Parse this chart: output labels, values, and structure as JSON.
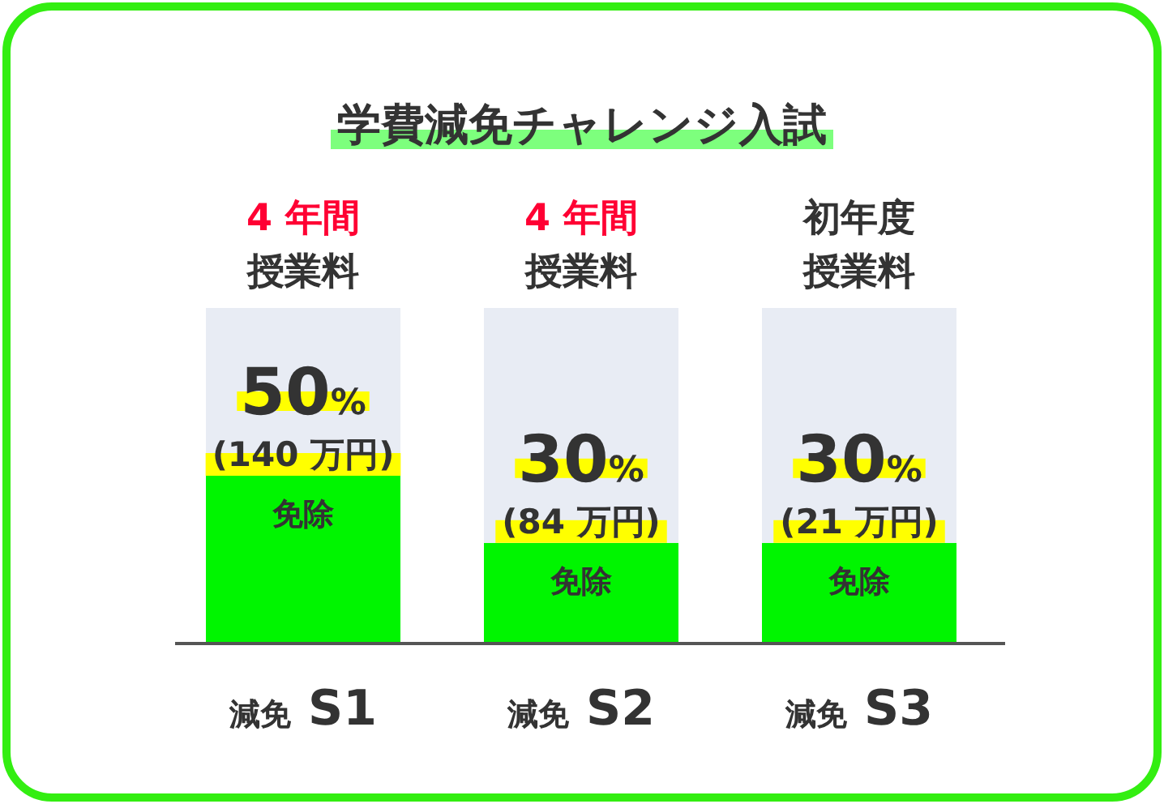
{
  "chart_data": {
    "type": "bar",
    "title": "学費減免チャレンジ入試",
    "stacked": true,
    "ylim": [
      0,
      100
    ],
    "tick_labels": "x",
    "categories": [
      "減免 S1",
      "減免 S2",
      "減免 S3"
    ],
    "series": [
      {
        "name": "免除",
        "color": "#00f500",
        "values": [
          50,
          30,
          30
        ],
        "value_labels": [
          "50%",
          "30%",
          "30%"
        ]
      },
      {
        "color": "#e8ecf4",
        "values": [
          50,
          70,
          70
        ]
      }
    ],
    "annotations": [
      "(140 万円)",
      "(84 万円)",
      "(21 万円)",
      "4 年間",
      "授業料",
      "4 年間",
      "授業料",
      "初年度",
      "授業料"
    ]
  }
}
